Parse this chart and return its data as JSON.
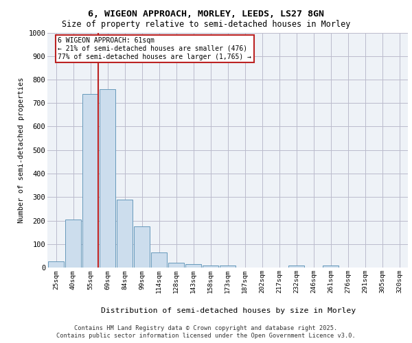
{
  "title1": "6, WIGEON APPROACH, MORLEY, LEEDS, LS27 8GN",
  "title2": "Size of property relative to semi-detached houses in Morley",
  "xlabel": "Distribution of semi-detached houses by size in Morley",
  "ylabel": "Number of semi-detached properties",
  "categories": [
    "25sqm",
    "40sqm",
    "55sqm",
    "69sqm",
    "84sqm",
    "99sqm",
    "114sqm",
    "128sqm",
    "143sqm",
    "158sqm",
    "173sqm",
    "187sqm",
    "202sqm",
    "217sqm",
    "232sqm",
    "246sqm",
    "261sqm",
    "276sqm",
    "291sqm",
    "305sqm",
    "320sqm"
  ],
  "values": [
    25,
    205,
    740,
    760,
    290,
    175,
    65,
    20,
    15,
    10,
    10,
    0,
    0,
    0,
    8,
    0,
    8,
    0,
    0,
    0,
    0
  ],
  "bar_color": "#ccdded",
  "bar_edge_color": "#6699bb",
  "vline_color": "#bb2222",
  "annotation_box_color": "#bb2222",
  "ylim": [
    0,
    1000
  ],
  "yticks": [
    0,
    100,
    200,
    300,
    400,
    500,
    600,
    700,
    800,
    900,
    1000
  ],
  "property_label": "6 WIGEON APPROACH: 61sqm",
  "pct_smaller": 21,
  "pct_larger": 77,
  "count_smaller": 476,
  "count_larger": 1765,
  "vline_pos": 2.47,
  "footer1": "Contains HM Land Registry data © Crown copyright and database right 2025.",
  "footer2": "Contains public sector information licensed under the Open Government Licence v3.0.",
  "plot_bg_color": "#eef2f7"
}
